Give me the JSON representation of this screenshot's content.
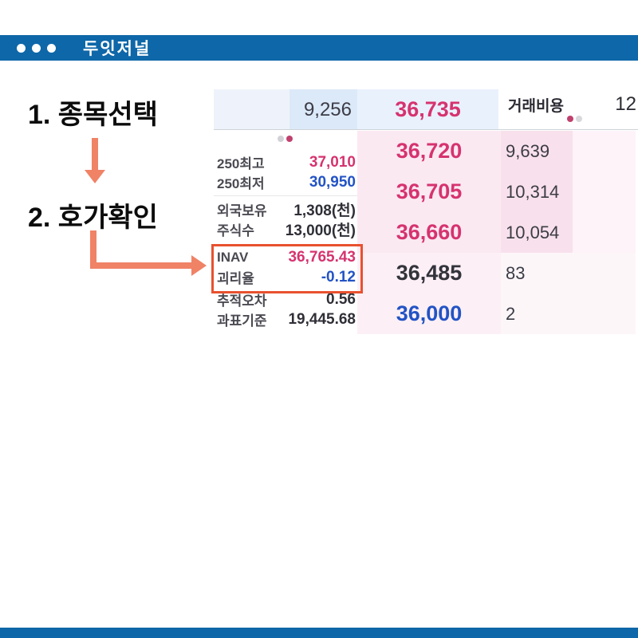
{
  "header": {
    "title": "두잇저널"
  },
  "annotations": {
    "step1": "1. 종목선택",
    "step2": "2. 호가확인"
  },
  "orderbook": {
    "top": {
      "bid_qty": "9,256",
      "price": "36,735"
    },
    "fee": {
      "label": "거래비용",
      "value": "12"
    },
    "ladder": [
      {
        "price": "36,720",
        "qty": "9,639"
      },
      {
        "price": "36,705",
        "qty": "10,314"
      },
      {
        "price": "36,660",
        "qty": "10,054"
      },
      {
        "price": "36,485",
        "qty": "83"
      },
      {
        "price": "36,000",
        "qty": "2"
      }
    ],
    "info": {
      "rows": [
        {
          "label": "250최고",
          "value": "37,010"
        },
        {
          "label": "250최저",
          "value": "30,950"
        },
        {
          "label": "외국보유",
          "value": "1,308(천)"
        },
        {
          "label": "주식수",
          "value": "13,000(천)"
        },
        {
          "label": "INAV",
          "value": "36,765.43"
        },
        {
          "label": "괴리율",
          "value": "-0.12"
        },
        {
          "label": "추적오차",
          "value": "0.56"
        },
        {
          "label": "과표기준",
          "value": "19,445.68"
        }
      ]
    }
  },
  "colors": {
    "bar_blue": "#0e67a8",
    "price_pink": "#d6336f",
    "price_blue": "#2353c5",
    "arrow_orange": "#f08266",
    "highlight_box_red": "#e8512f"
  }
}
